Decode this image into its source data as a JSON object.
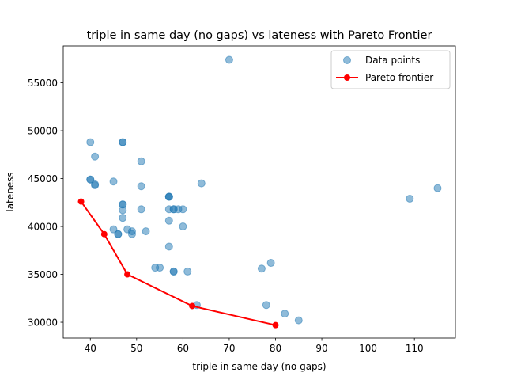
{
  "chart_data": {
    "type": "scatter",
    "title": "triple in same day (no gaps) vs lateness with Pareto Frontier",
    "xlabel": "triple in same day (no gaps)",
    "ylabel": "lateness",
    "xlim": [
      34.15,
      118.85
    ],
    "ylim": [
      28350,
      58850
    ],
    "xticks": [
      40,
      50,
      60,
      70,
      80,
      90,
      100,
      110
    ],
    "yticks": [
      30000,
      35000,
      40000,
      45000,
      50000,
      55000
    ],
    "grid": false,
    "legend_position": "top-right",
    "colors": {
      "points": "#1f77b4",
      "frontier": "#ff0000"
    },
    "series": [
      {
        "name": "Data points",
        "kind": "scatter",
        "points": [
          [
            40,
            48800
          ],
          [
            47,
            48800
          ],
          [
            47,
            48800
          ],
          [
            41,
            47300
          ],
          [
            51,
            46800
          ],
          [
            40,
            44900
          ],
          [
            40,
            44900
          ],
          [
            41,
            44400
          ],
          [
            41,
            44300
          ],
          [
            45,
            44700
          ],
          [
            51,
            44200
          ],
          [
            64,
            44500
          ],
          [
            57,
            43100
          ],
          [
            57,
            43100
          ],
          [
            57,
            43100
          ],
          [
            47,
            42300
          ],
          [
            47,
            42300
          ],
          [
            47,
            41700
          ],
          [
            51,
            41800
          ],
          [
            57,
            41800
          ],
          [
            58,
            41800
          ],
          [
            58,
            41800
          ],
          [
            59,
            41800
          ],
          [
            60,
            41800
          ],
          [
            47,
            40900
          ],
          [
            57,
            40600
          ],
          [
            60,
            40000
          ],
          [
            45,
            39700
          ],
          [
            48,
            39700
          ],
          [
            49,
            39500
          ],
          [
            46,
            39200
          ],
          [
            46,
            39200
          ],
          [
            49,
            39200
          ],
          [
            52,
            39500
          ],
          [
            57,
            37900
          ],
          [
            54,
            35700
          ],
          [
            55,
            35700
          ],
          [
            58,
            35300
          ],
          [
            58,
            35300
          ],
          [
            61,
            35300
          ],
          [
            63,
            31800
          ],
          [
            70,
            57400
          ],
          [
            77,
            35600
          ],
          [
            79,
            36200
          ],
          [
            78,
            31800
          ],
          [
            82,
            30900
          ],
          [
            85,
            30200
          ],
          [
            109,
            42900
          ],
          [
            115,
            44000
          ]
        ]
      },
      {
        "name": "Pareto frontier",
        "kind": "line",
        "points": [
          [
            38,
            42600
          ],
          [
            43,
            39200
          ],
          [
            48,
            35000
          ],
          [
            62,
            31700
          ],
          [
            80,
            29700
          ]
        ]
      }
    ]
  }
}
